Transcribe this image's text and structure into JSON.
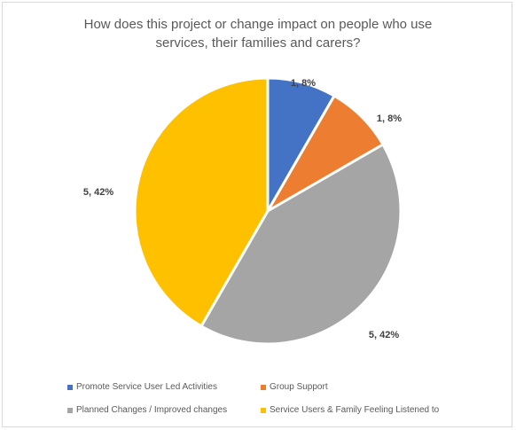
{
  "chart_data": {
    "type": "pie",
    "title": "How does this project or change impact on people who use\nservices, their families and carers?",
    "slices": [
      {
        "label": "Promote Service User Led Activities",
        "value": 1,
        "percent": 8,
        "data_label": "1, 8%",
        "color": "#4472C4"
      },
      {
        "label": "Group Support",
        "value": 1,
        "percent": 8,
        "data_label": "1, 8%",
        "color": "#ED7D31"
      },
      {
        "label": "Planned Changes / Improved changes",
        "value": 5,
        "percent": 42,
        "data_label": "5, 42%",
        "color": "#A5A5A5"
      },
      {
        "label": "Service Users & Family Feeling Listened to",
        "value": 5,
        "percent": 42,
        "data_label": "5, 42%",
        "color": "#FFC000"
      }
    ],
    "legend_position": "bottom",
    "slice_border_color": "#ffffff"
  }
}
